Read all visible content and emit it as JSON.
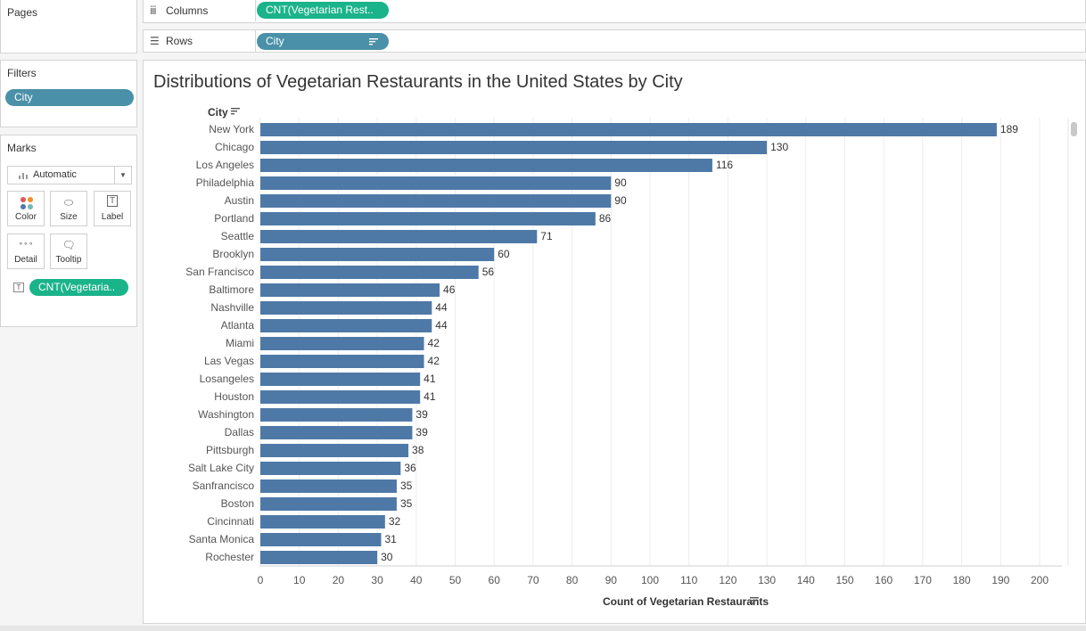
{
  "left_panel": {
    "pages_title": "Pages",
    "filters_title": "Filters",
    "filter_pill": "City",
    "marks_title": "Marks",
    "mark_type": "Automatic",
    "mark_buttons": {
      "color": "Color",
      "size": "Size",
      "label": "Label",
      "detail": "Detail",
      "tooltip": "Tooltip"
    },
    "mark_pill": "CNT(Vegetaria.."
  },
  "shelves": {
    "columns_label": "Columns",
    "columns_pill": "CNT(Vegetarian Rest..",
    "rows_label": "Rows",
    "rows_pill": "City"
  },
  "colors": {
    "bar": "#4e79a7",
    "pill_blue": "#4a90a8",
    "pill_green": "#1bb38a"
  },
  "chart_data": {
    "type": "bar",
    "orientation": "horizontal",
    "title": "Distributions of Vegetarian Restaurants in the United States by City",
    "row_header": "City",
    "xlabel": "Count of Vegetarian Restaurants",
    "categories": [
      "New York",
      "Chicago",
      "Los Angeles",
      "Philadelphia",
      "Austin",
      "Portland",
      "Seattle",
      "Brooklyn",
      "San Francisco",
      "Baltimore",
      "Nashville",
      "Atlanta",
      "Miami",
      "Las Vegas",
      "Losangeles",
      "Houston",
      "Washington",
      "Dallas",
      "Pittsburgh",
      "Salt Lake City",
      "Sanfrancisco",
      "Boston",
      "Cincinnati",
      "Santa Monica",
      "Rochester"
    ],
    "values": [
      189,
      130,
      116,
      90,
      90,
      86,
      71,
      60,
      56,
      46,
      44,
      44,
      42,
      42,
      41,
      41,
      39,
      39,
      38,
      36,
      35,
      35,
      32,
      31,
      30
    ],
    "xlim": [
      0,
      200
    ],
    "xticks": [
      0,
      10,
      20,
      30,
      40,
      50,
      60,
      70,
      80,
      90,
      100,
      110,
      120,
      130,
      140,
      150,
      160,
      170,
      180,
      190,
      200
    ],
    "grid": "vertical",
    "data_labels": true
  }
}
